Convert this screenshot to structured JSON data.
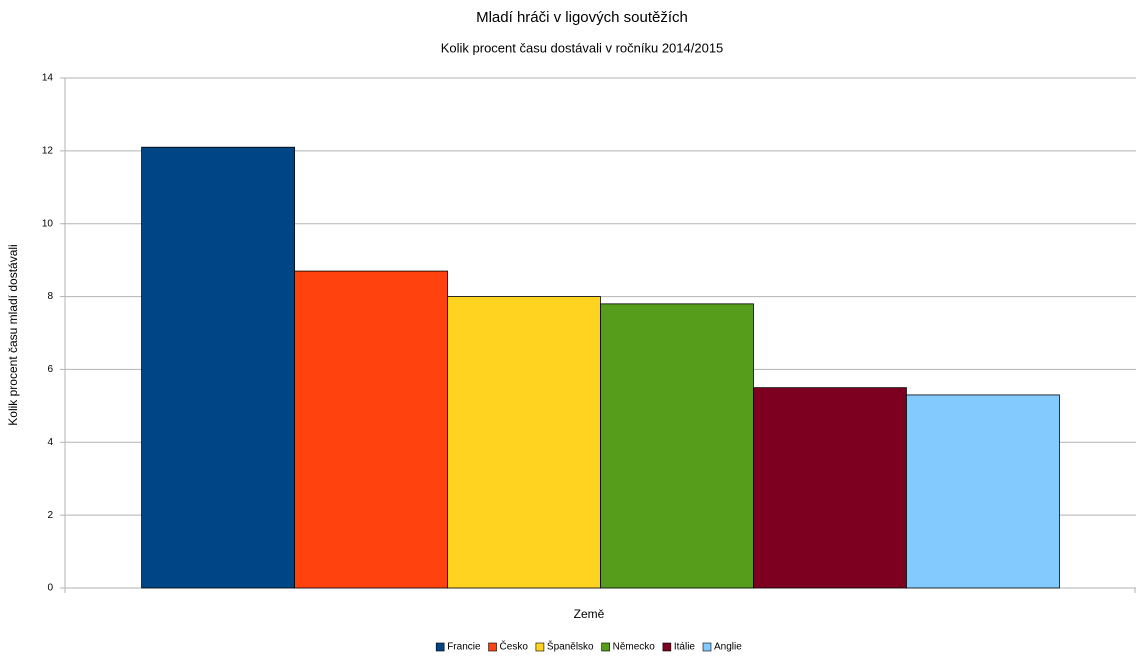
{
  "chart_data": {
    "type": "bar",
    "title": "Mladí hráči v ligových soutěžích",
    "subtitle": "Kolik procent času dostávali v ročníku 2014/2015",
    "x_label": "Země",
    "y_label": "Kolik procent času mladí dostávali",
    "categories": [
      null
    ],
    "series": [
      {
        "name": "Francie",
        "color": "#004586",
        "values": [
          12.1
        ]
      },
      {
        "name": "Česko",
        "color": "#ff420e",
        "values": [
          8.7
        ]
      },
      {
        "name": "Španělsko",
        "color": "#ffd320",
        "values": [
          8.0
        ]
      },
      {
        "name": "Německo",
        "color": "#579d1c",
        "values": [
          7.8
        ]
      },
      {
        "name": "Itálie",
        "color": "#7e0021",
        "values": [
          5.5
        ]
      },
      {
        "name": "Anglie",
        "color": "#83caff",
        "values": [
          5.3
        ]
      }
    ],
    "ylim": [
      0,
      14
    ],
    "yticks": [
      0,
      2,
      4,
      6,
      8,
      10,
      12,
      14
    ],
    "grid": true,
    "legend": "bottom"
  }
}
